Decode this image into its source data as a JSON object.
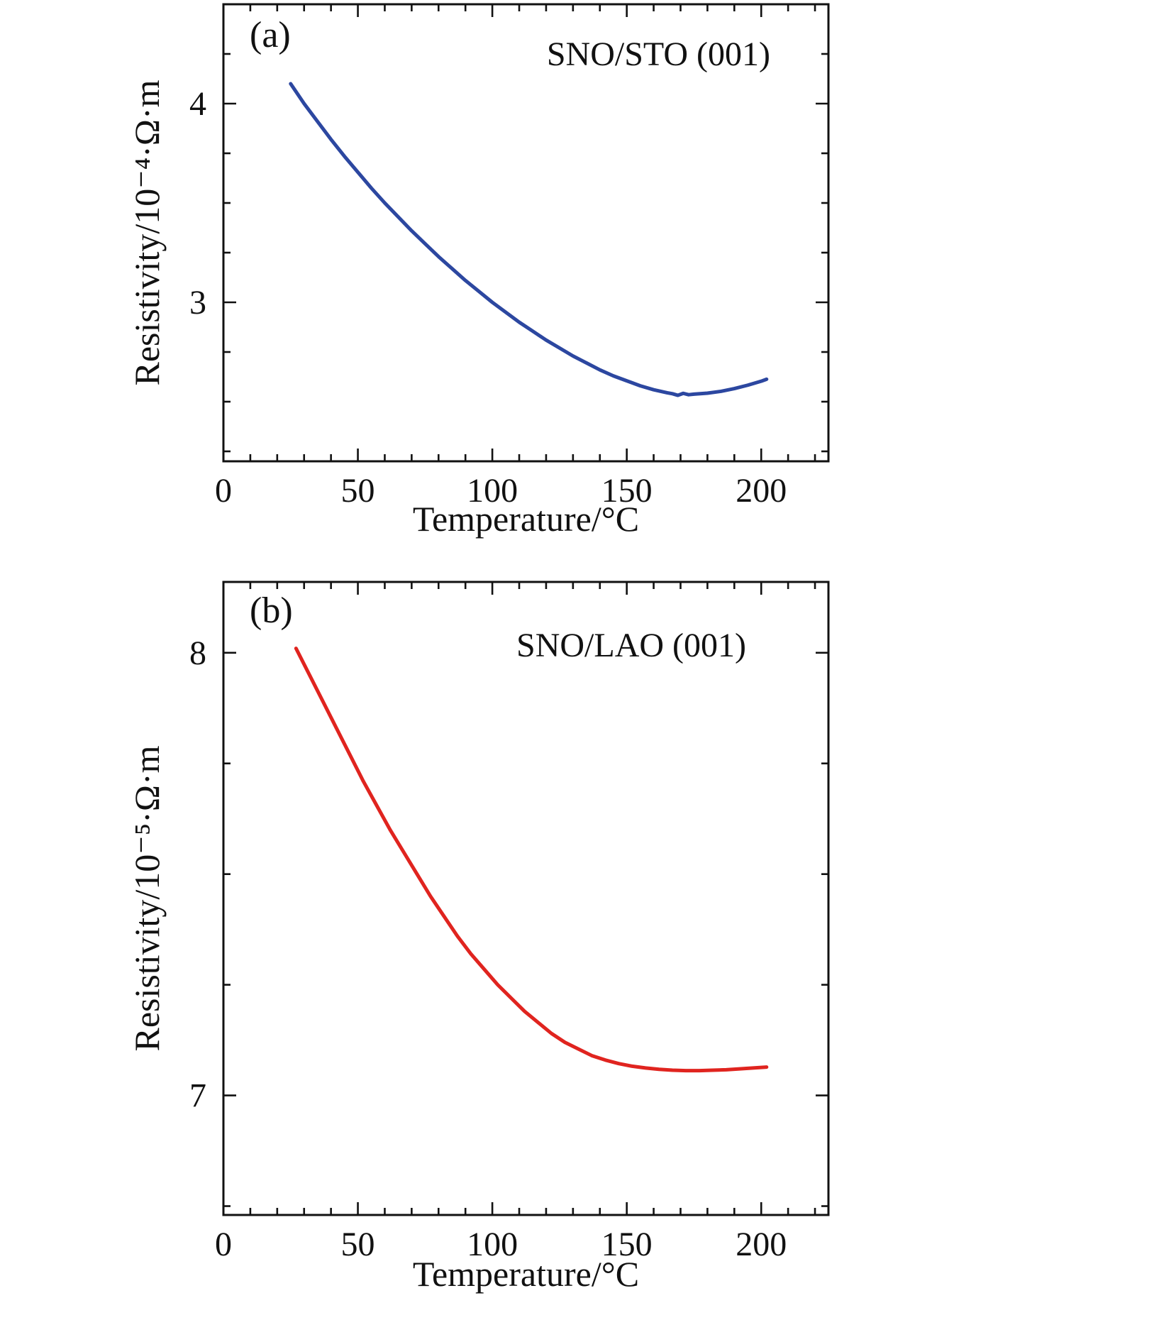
{
  "figure": {
    "background": "#ffffff",
    "frame_color": "#111111"
  },
  "chart_data": [
    {
      "id": "a",
      "type": "line",
      "panel_label": "(a)",
      "legend": {
        "label": "SNO/STO (001)",
        "color": "#2c47a0",
        "position": "top-right"
      },
      "xlabel": "Temperature/°C",
      "ylabel": "Resistivity/10⁻⁴·Ω·m",
      "xlim": [
        0,
        225
      ],
      "ylim": [
        2.2,
        4.5
      ],
      "x_major_ticks": [
        0,
        50,
        100,
        150,
        200
      ],
      "x_minor_step": 10,
      "y_major_ticks": [
        3,
        4
      ],
      "y_minor_step": 0.25,
      "grid": false,
      "series": [
        {
          "name": "SNO/STO (001)",
          "color": "#2c47a0",
          "x": [
            25,
            30,
            35,
            40,
            45,
            50,
            55,
            60,
            65,
            70,
            75,
            80,
            85,
            90,
            95,
            100,
            105,
            110,
            115,
            120,
            125,
            130,
            135,
            140,
            145,
            150,
            155,
            160,
            165,
            167,
            169,
            171,
            173,
            175,
            180,
            185,
            190,
            195,
            200,
            202
          ],
          "y": [
            4.1,
            4.0,
            3.91,
            3.82,
            3.735,
            3.655,
            3.575,
            3.5,
            3.43,
            3.36,
            3.295,
            3.23,
            3.17,
            3.11,
            3.055,
            3.0,
            2.95,
            2.9,
            2.855,
            2.81,
            2.77,
            2.73,
            2.695,
            2.66,
            2.63,
            2.605,
            2.58,
            2.56,
            2.545,
            2.54,
            2.532,
            2.542,
            2.535,
            2.538,
            2.543,
            2.552,
            2.566,
            2.583,
            2.603,
            2.613
          ]
        }
      ]
    },
    {
      "id": "b",
      "type": "line",
      "panel_label": "(b)",
      "legend": {
        "label": "SNO/LAO (001)",
        "color": "#e0241f",
        "position": "top-right"
      },
      "xlabel": "Temperature/°C",
      "ylabel": "Resistivity/10⁻⁵·Ω·m",
      "xlim": [
        0,
        225
      ],
      "ylim": [
        6.73,
        8.16
      ],
      "x_major_ticks": [
        0,
        50,
        100,
        150,
        200
      ],
      "x_minor_step": 10,
      "y_major_ticks": [
        7,
        8
      ],
      "y_minor_step": 0.25,
      "grid": false,
      "series": [
        {
          "name": "SNO/LAO (001)",
          "color": "#e0241f",
          "x": [
            27,
            32,
            37,
            42,
            47,
            52,
            57,
            62,
            67,
            72,
            77,
            82,
            87,
            92,
            97,
            102,
            107,
            112,
            117,
            122,
            127,
            132,
            137,
            142,
            147,
            152,
            157,
            162,
            167,
            172,
            177,
            182,
            187,
            192,
            197,
            202
          ],
          "y": [
            8.01,
            7.95,
            7.89,
            7.83,
            7.77,
            7.71,
            7.655,
            7.6,
            7.55,
            7.5,
            7.45,
            7.405,
            7.36,
            7.32,
            7.285,
            7.25,
            7.22,
            7.19,
            7.165,
            7.14,
            7.12,
            7.105,
            7.09,
            7.08,
            7.072,
            7.066,
            7.062,
            7.059,
            7.057,
            7.056,
            7.056,
            7.057,
            7.058,
            7.06,
            7.062,
            7.064
          ]
        }
      ]
    }
  ]
}
